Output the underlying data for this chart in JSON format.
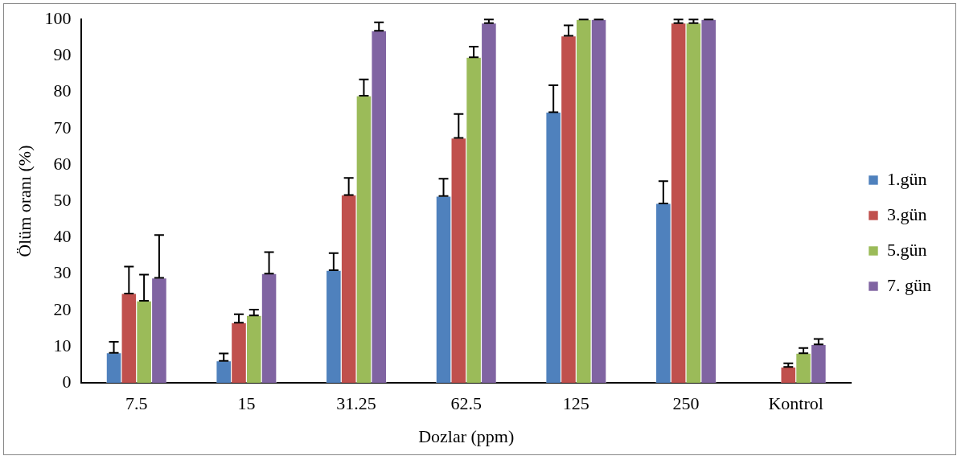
{
  "chart_data": {
    "type": "bar",
    "xlabel": "Dozlar (ppm)",
    "ylabel": "Ölüm oranı (%)",
    "categories": [
      "7.5",
      "15",
      "31.25",
      "62.5",
      "125",
      "250",
      "Kontrol"
    ],
    "series": [
      {
        "name": "1.gün",
        "color": "#4f81bd",
        "values": [
          8.3,
          6.1,
          31.0,
          51.4,
          74.5,
          49.4,
          0
        ],
        "errors": [
          [
            8.3,
            11.3
          ],
          [
            6.1,
            8.1
          ],
          [
            31.0,
            35.7
          ],
          [
            51.4,
            56.2
          ],
          [
            74.5,
            81.9
          ],
          [
            49.4,
            55.5
          ],
          null
        ]
      },
      {
        "name": "3.gün",
        "color": "#c0504d",
        "values": [
          24.6,
          16.6,
          51.7,
          67.4,
          95.5,
          99.0,
          4.4
        ],
        "errors": [
          [
            24.6,
            32.0
          ],
          [
            16.6,
            18.9
          ],
          [
            51.7,
            56.4
          ],
          [
            67.4,
            74.0
          ],
          [
            95.5,
            98.4
          ],
          [
            99.0,
            100
          ],
          [
            4.4,
            5.4
          ]
        ]
      },
      {
        "name": "5.gün",
        "color": "#9bbb59",
        "values": [
          22.6,
          18.6,
          79.0,
          89.6,
          100,
          99.0,
          8.2
        ],
        "errors": [
          [
            22.6,
            29.8
          ],
          [
            18.6,
            20.2
          ],
          [
            79.0,
            83.5
          ],
          [
            89.6,
            92.5
          ],
          [
            100,
            100
          ],
          [
            99.0,
            100
          ],
          [
            8.2,
            9.6
          ]
        ]
      },
      {
        "name": "7. gün",
        "color": "#8064a2",
        "values": [
          28.9,
          30.1,
          96.9,
          99.0,
          100,
          100,
          10.6
        ],
        "errors": [
          [
            28.9,
            40.7
          ],
          [
            30.1,
            36.0
          ],
          [
            96.9,
            99.2
          ],
          [
            99.0,
            100
          ],
          [
            100,
            100
          ],
          [
            100,
            100
          ],
          [
            10.6,
            12.1
          ]
        ]
      }
    ],
    "ylim": [
      0,
      100
    ],
    "yticks": [
      0,
      10,
      20,
      30,
      40,
      50,
      60,
      70,
      80,
      90,
      100
    ],
    "grid": false,
    "legend": "right"
  }
}
